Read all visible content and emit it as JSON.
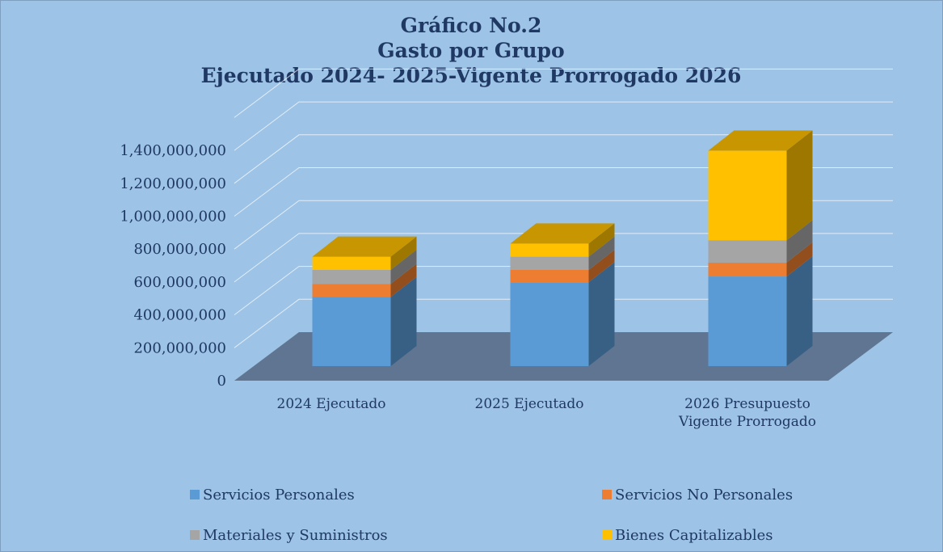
{
  "chart_data": {
    "type": "bar3d_stacked",
    "title": [
      "Gráfico No.2",
      "Gasto por Grupo",
      "Ejecutado 2024- 2025-Vigente Prorrogado 2026"
    ],
    "categories": [
      "2024 Ejecutado",
      "2025 Ejecutado",
      "2026 Presupuesto Vigente Prorrogado"
    ],
    "series": [
      {
        "name": "Servicios Personales",
        "color": "#5b9bd5",
        "values": [
          420000000,
          510000000,
          545000000
        ]
      },
      {
        "name": "Servicios No Personales",
        "color": "#ed7d31",
        "values": [
          80000000,
          75000000,
          85000000
        ]
      },
      {
        "name": "Materiales y Suministros",
        "color": "#a5a5a5",
        "values": [
          85000000,
          80000000,
          135000000
        ]
      },
      {
        "name": "Bienes Capitalizables",
        "color": "#ffc000",
        "values": [
          80000000,
          80000000,
          545000000
        ]
      }
    ],
    "ylim": [
      0,
      1600000000
    ],
    "yticks": [
      0,
      {
        "value": 200000000,
        "label": "200,000,000"
      },
      {
        "value": 400000000,
        "label": "400,000,000"
      },
      {
        "value": 600000000,
        "label": "600,000,000"
      },
      {
        "value": 800000000,
        "label": "800,000,000"
      },
      {
        "value": 1000000000,
        "label": "1,000,000,000"
      },
      {
        "value": 1200000000,
        "label": "1,200,000,000"
      },
      {
        "value": 1400000000,
        "label": "1,400,000,000"
      }
    ],
    "grid": true
  }
}
